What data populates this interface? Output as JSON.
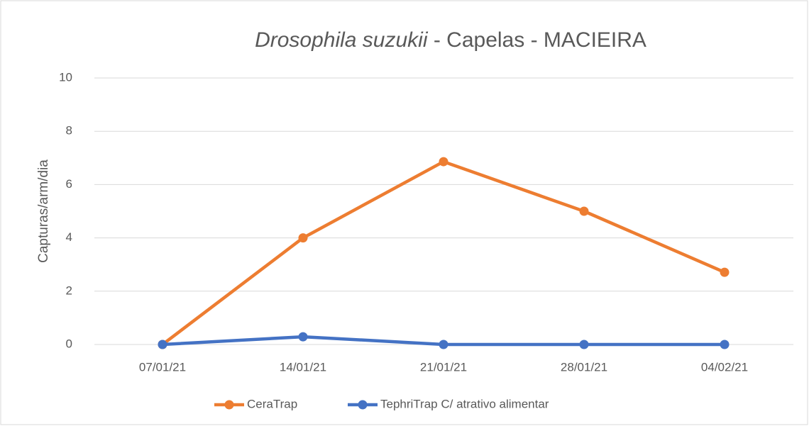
{
  "chart_data": {
    "type": "line",
    "title": [
      "Drosophila suzukii",
      " - Capelas - MACIEIRA"
    ],
    "title_italic": [
      true,
      false
    ],
    "y_label": "Capturas/arm/dia",
    "categories": [
      "07/01/21",
      "14/01/21",
      "21/01/21",
      "28/01/21",
      "04/02/21"
    ],
    "series": [
      {
        "name": "CeraTrap",
        "color": "#ed7d31",
        "values": [
          0,
          4,
          6.86,
          5,
          2.71
        ]
      },
      {
        "name": "TephriTrap C/ atrativo alimentar",
        "color": "#4472c4",
        "values": [
          0,
          0.29,
          0,
          0,
          0
        ]
      }
    ],
    "ylim": [
      0,
      10
    ],
    "yticks": [
      0,
      2,
      4,
      6,
      8,
      10
    ],
    "grid": true,
    "legend": "bottom"
  }
}
